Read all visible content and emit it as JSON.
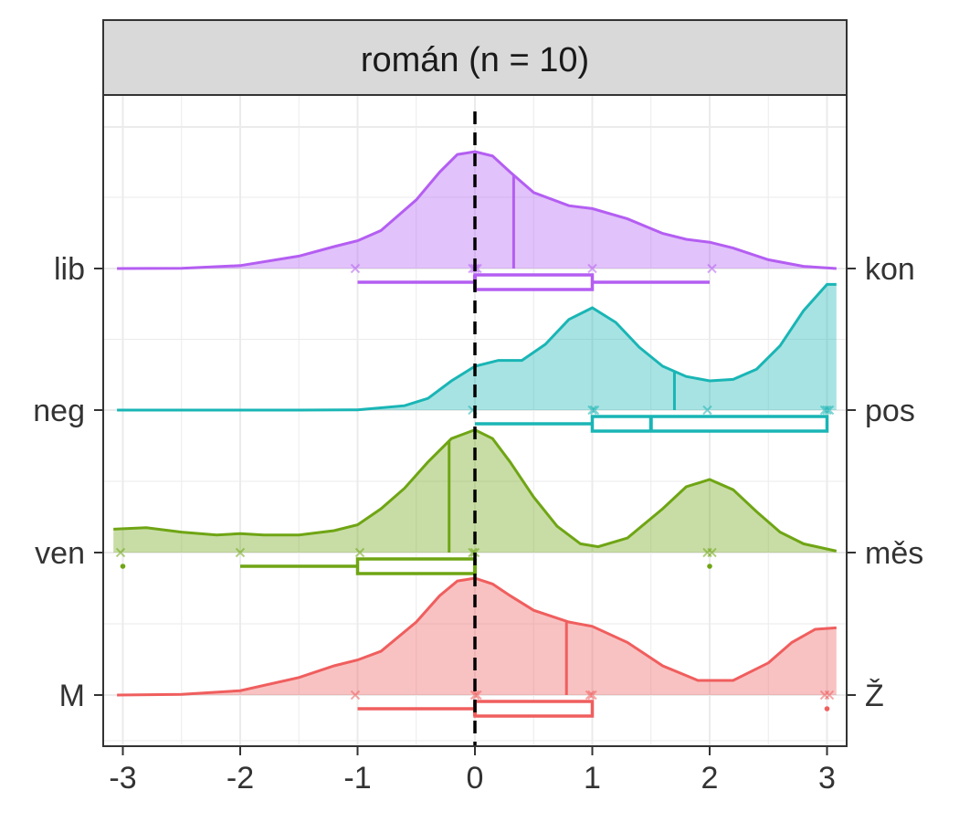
{
  "chart_data": {
    "type": "ridgeline",
    "title": "román (n = 10)",
    "xlabel": "",
    "ylabel": "",
    "xlim": [
      -3.1,
      3.1
    ],
    "x_ticks": [
      "-3",
      "-2",
      "-1",
      "0",
      "1",
      "2",
      "3"
    ],
    "reference_line_x": 0,
    "grid": true,
    "legend": "none",
    "series": [
      {
        "left_label": "lib",
        "right_label": "kon",
        "color": "#b45ef2",
        "density": {
          "x": [
            -3.05,
            -2.5,
            -2.0,
            -1.5,
            -1.2,
            -1.0,
            -0.8,
            -0.5,
            -0.3,
            -0.15,
            0.0,
            0.15,
            0.3,
            0.5,
            0.8,
            1.0,
            1.3,
            1.6,
            1.8,
            2.0,
            2.2,
            2.5,
            2.8,
            3.08
          ],
          "y": [
            0.0,
            0.002,
            0.02,
            0.085,
            0.15,
            0.19,
            0.26,
            0.47,
            0.66,
            0.78,
            0.8,
            0.77,
            0.66,
            0.52,
            0.43,
            0.41,
            0.34,
            0.24,
            0.2,
            0.18,
            0.14,
            0.06,
            0.015,
            0.0
          ]
        },
        "mean": 0.33,
        "points": [
          -1,
          0,
          0,
          0,
          1,
          2
        ],
        "box": {
          "whisker_low": -1,
          "q1": 0,
          "median": 0,
          "q3": 1,
          "whisker_high": 2
        },
        "outliers": []
      },
      {
        "left_label": "neg",
        "right_label": "pos",
        "color": "#1ab5b5",
        "density": {
          "x": [
            -3.05,
            -2.0,
            -1.5,
            -1.0,
            -0.6,
            -0.4,
            -0.2,
            0.0,
            0.2,
            0.4,
            0.6,
            0.8,
            1.0,
            1.2,
            1.4,
            1.6,
            1.8,
            2.0,
            2.2,
            2.4,
            2.6,
            2.8,
            3.0,
            3.08
          ],
          "y": [
            0.0,
            0.0,
            0.0,
            0.002,
            0.03,
            0.08,
            0.2,
            0.3,
            0.34,
            0.34,
            0.45,
            0.62,
            0.7,
            0.6,
            0.43,
            0.3,
            0.23,
            0.2,
            0.21,
            0.28,
            0.44,
            0.68,
            0.86,
            0.86
          ]
        },
        "mean": 1.7,
        "points": [
          0,
          1,
          1,
          2,
          3,
          3,
          3
        ],
        "box": {
          "whisker_low": 0,
          "q1": 1,
          "median": 1.5,
          "q3": 3,
          "whisker_high": 3
        },
        "outliers": []
      },
      {
        "left_label": "ven",
        "right_label": "měs",
        "color": "#6fa514",
        "density": {
          "x": [
            -3.08,
            -2.8,
            -2.5,
            -2.2,
            -2.0,
            -1.8,
            -1.5,
            -1.2,
            -1.0,
            -0.8,
            -0.6,
            -0.4,
            -0.2,
            0.0,
            0.15,
            0.3,
            0.5,
            0.7,
            0.9,
            1.05,
            1.3,
            1.6,
            1.8,
            2.0,
            2.2,
            2.4,
            2.6,
            2.8,
            3.08
          ],
          "y": [
            0.16,
            0.17,
            0.14,
            0.12,
            0.13,
            0.12,
            0.12,
            0.15,
            0.19,
            0.3,
            0.44,
            0.62,
            0.78,
            0.84,
            0.78,
            0.62,
            0.38,
            0.18,
            0.06,
            0.04,
            0.1,
            0.3,
            0.45,
            0.5,
            0.43,
            0.28,
            0.14,
            0.06,
            0.01
          ]
        },
        "mean": -0.22,
        "points": [
          -3,
          -2,
          -1,
          0,
          0,
          2,
          2
        ],
        "box": {
          "whisker_low": -2,
          "q1": -1,
          "median": 0,
          "q3": 0,
          "whisker_high": 0
        },
        "outliers": [
          -3,
          2
        ]
      },
      {
        "left_label": "M",
        "right_label": "Ž",
        "color": "#f05e5e",
        "density": {
          "x": [
            -3.05,
            -2.5,
            -2.0,
            -1.5,
            -1.2,
            -1.0,
            -0.8,
            -0.5,
            -0.3,
            -0.15,
            0.0,
            0.15,
            0.3,
            0.5,
            0.8,
            1.0,
            1.3,
            1.6,
            1.9,
            2.2,
            2.5,
            2.7,
            2.9,
            3.08
          ],
          "y": [
            0.0,
            0.005,
            0.03,
            0.12,
            0.2,
            0.24,
            0.3,
            0.5,
            0.68,
            0.78,
            0.8,
            0.76,
            0.68,
            0.58,
            0.5,
            0.47,
            0.36,
            0.2,
            0.1,
            0.1,
            0.22,
            0.36,
            0.45,
            0.46
          ]
        },
        "mean": 0.78,
        "points": [
          -1,
          0,
          0,
          1,
          1,
          3,
          3
        ],
        "box": {
          "whisker_low": -1,
          "q1": 0,
          "median": 0,
          "q3": 1,
          "whisker_high": 1
        },
        "outliers": [
          3
        ]
      }
    ]
  }
}
